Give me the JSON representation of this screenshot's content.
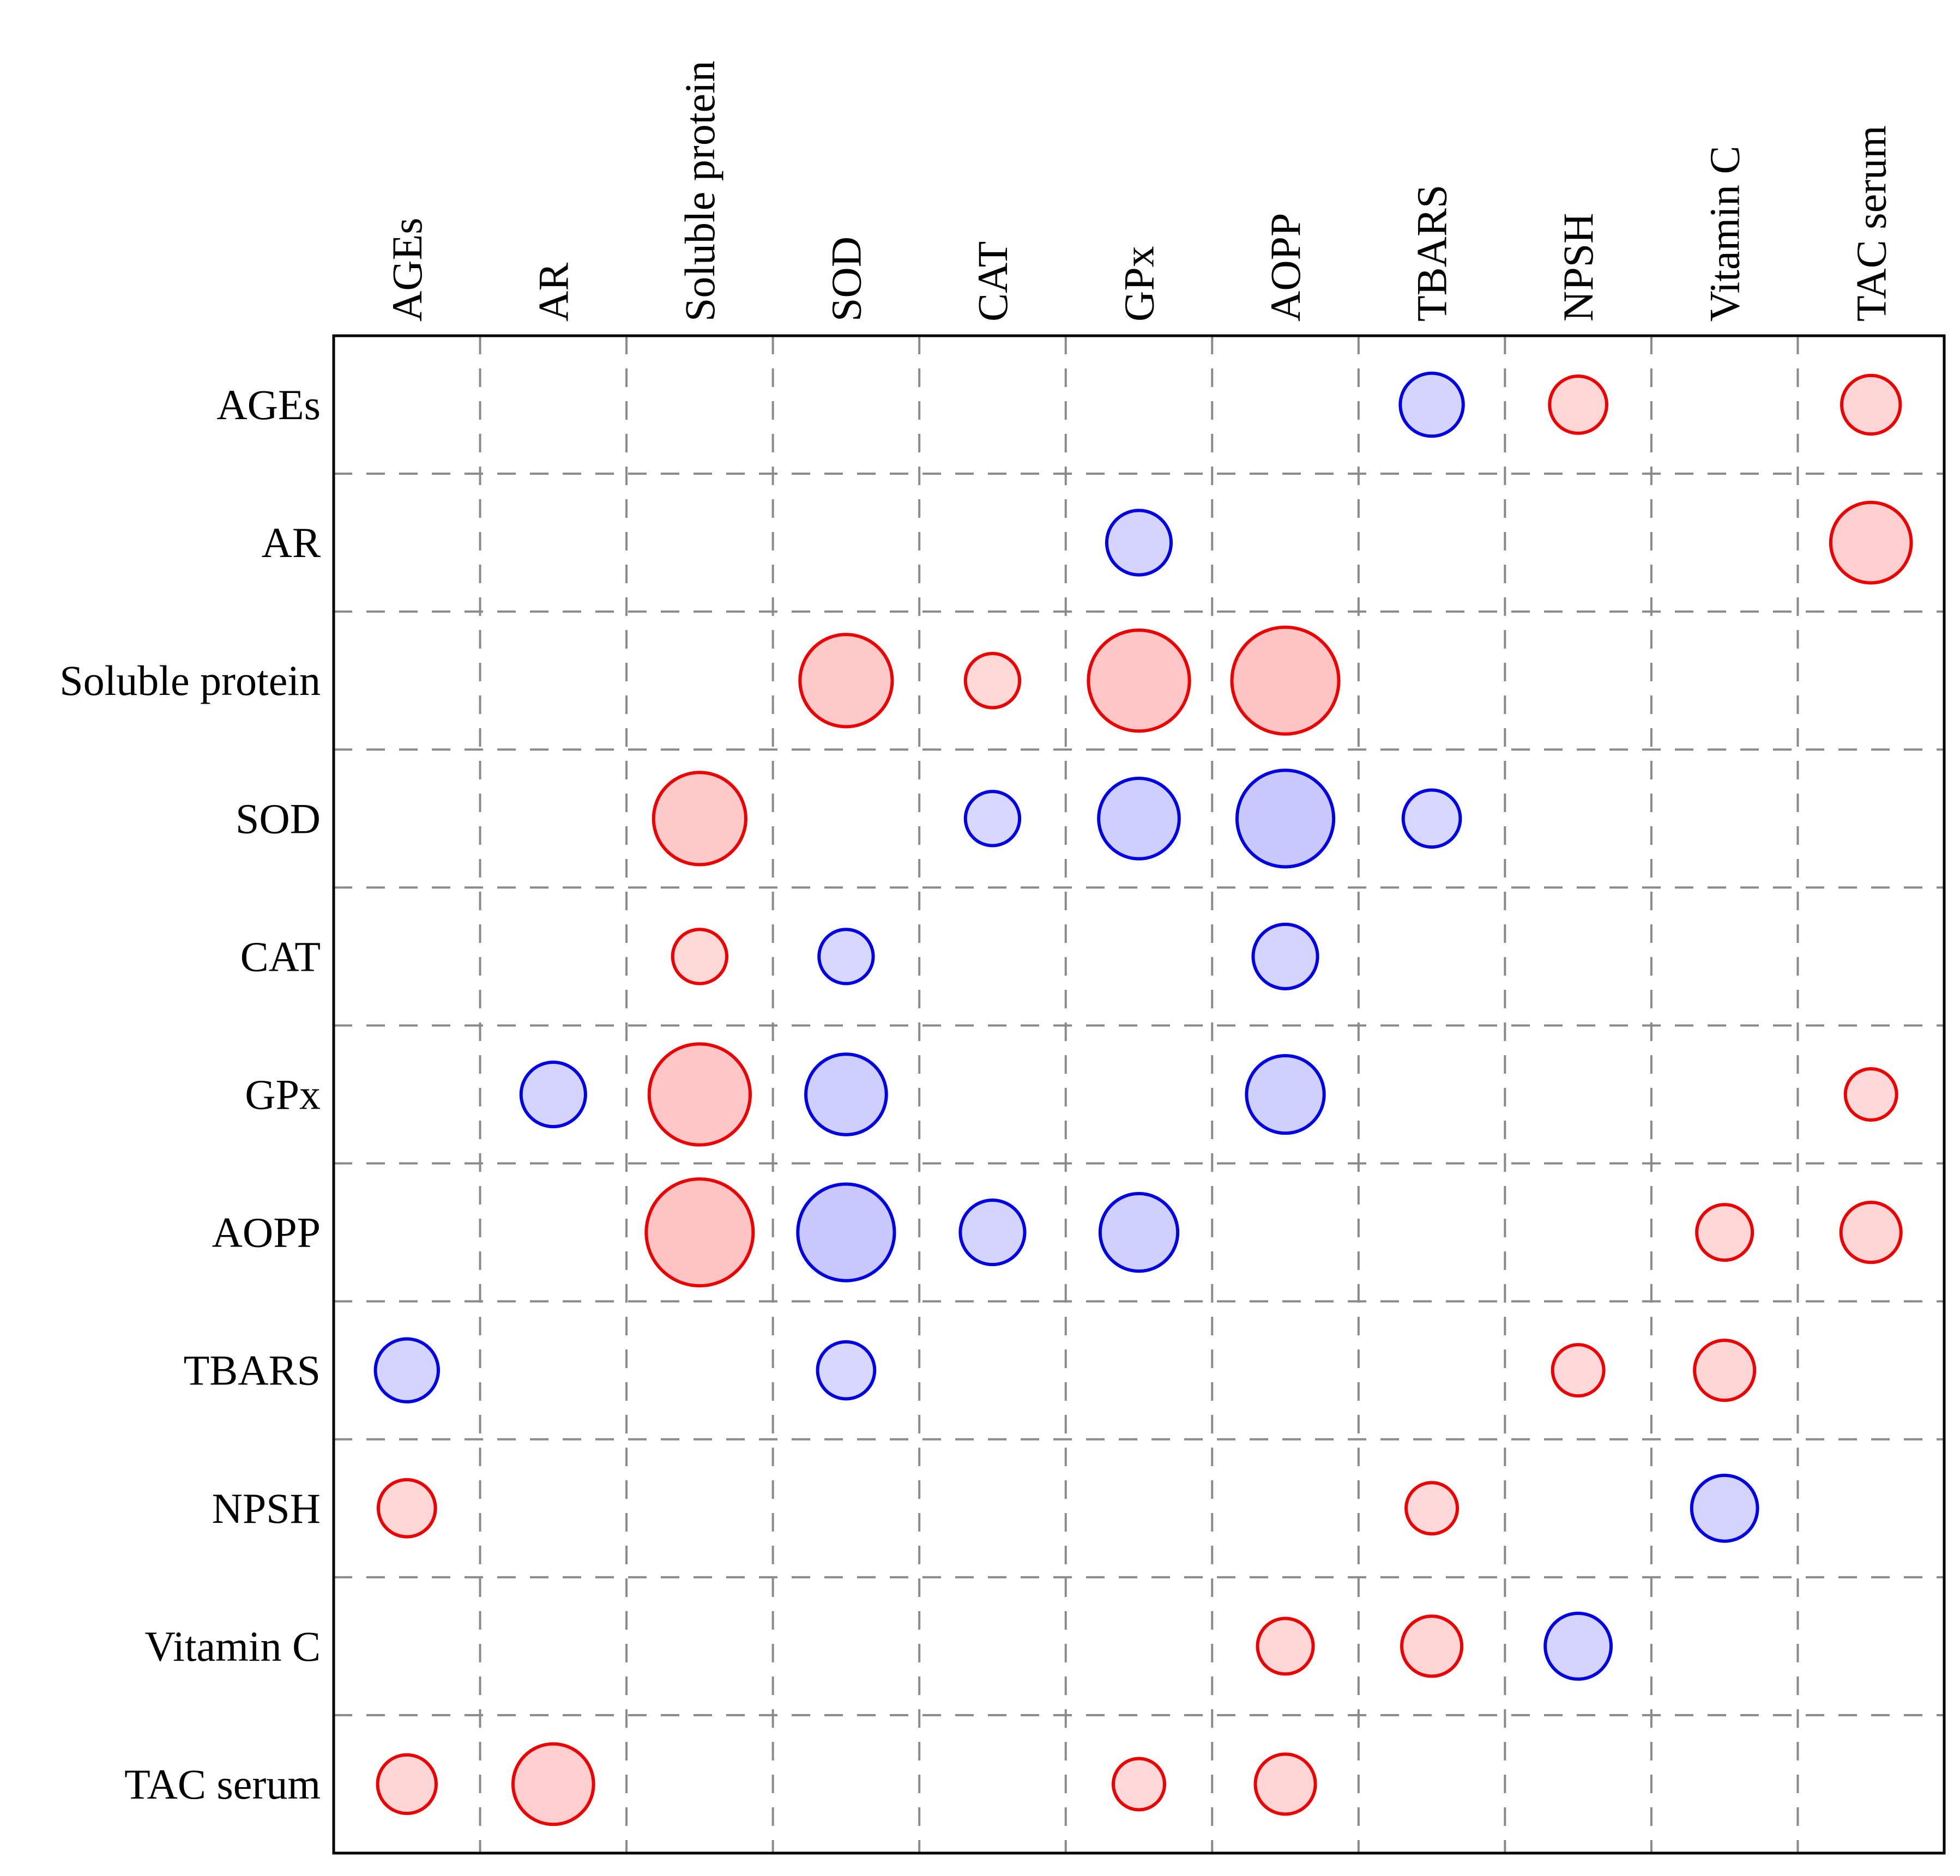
{
  "figure": {
    "background_color": "#ffffff",
    "title": ""
  },
  "chart_data": {
    "type": "correlation-bubble-matrix",
    "title": "",
    "xlabel": "",
    "ylabel": "",
    "variables": [
      "AGEs",
      "AR",
      "Soluble protein",
      "SOD",
      "CAT",
      "GPx",
      "AOPP",
      "TBARS",
      "NPSH",
      "Vitamin C",
      "TAC serum"
    ],
    "column_labels": [
      "AGEs",
      "AR",
      "Soluble protein",
      "SOD",
      "CAT",
      "GPx",
      "AOPP",
      "TBARS",
      "NPSH",
      "Vitamin C",
      "TAC serum"
    ],
    "row_labels": [
      "AGEs",
      "AR",
      "Soluble protein",
      "SOD",
      "CAT",
      "GPx",
      "AOPP",
      "TBARS",
      "NPSH",
      "Vitamin C",
      "TAC serum"
    ],
    "correlations": [
      {
        "a": "AGEs",
        "b": "TBARS",
        "r": -0.43
      },
      {
        "a": "AGEs",
        "b": "NPSH",
        "r": 0.39
      },
      {
        "a": "AGEs",
        "b": "TAC serum",
        "r": 0.4
      },
      {
        "a": "AR",
        "b": "GPx",
        "r": -0.44
      },
      {
        "a": "AR",
        "b": "TAC serum",
        "r": 0.55
      },
      {
        "a": "Soluble protein",
        "b": "SOD",
        "r": 0.63
      },
      {
        "a": "Soluble protein",
        "b": "CAT",
        "r": 0.37
      },
      {
        "a": "Soluble protein",
        "b": "GPx",
        "r": 0.69
      },
      {
        "a": "Soluble protein",
        "b": "AOPP",
        "r": 0.73
      },
      {
        "a": "SOD",
        "b": "CAT",
        "r": -0.37
      },
      {
        "a": "SOD",
        "b": "GPx",
        "r": -0.55
      },
      {
        "a": "SOD",
        "b": "AOPP",
        "r": -0.66
      },
      {
        "a": "SOD",
        "b": "TBARS",
        "r": -0.39
      },
      {
        "a": "CAT",
        "b": "AOPP",
        "r": -0.44
      },
      {
        "a": "GPx",
        "b": "AOPP",
        "r": -0.53
      },
      {
        "a": "GPx",
        "b": "TAC serum",
        "r": 0.35
      },
      {
        "a": "AOPP",
        "b": "Vitamin C",
        "r": 0.38
      },
      {
        "a": "AOPP",
        "b": "TAC serum",
        "r": 0.41
      },
      {
        "a": "TBARS",
        "b": "NPSH",
        "r": 0.35
      },
      {
        "a": "TBARS",
        "b": "Vitamin C",
        "r": 0.41
      },
      {
        "a": "NPSH",
        "b": "Vitamin C",
        "r": -0.45
      }
    ],
    "sign_encoding": {
      "positive": "red circle",
      "negative": "blue circle"
    },
    "size_encoding": "circle diameter proportional to |r| (full cell width = 1.0)",
    "positive_stroke_color": "#ee0000",
    "negative_stroke_color": "#0000e6",
    "positive_fill_base": "255,0,0",
    "negative_fill_base": "0,0,255",
    "grid_line_color": "#8a8a8a",
    "frame_color": "#000000",
    "grid": "dashed",
    "legend_position": "none",
    "diagonal": "empty",
    "matrix_symmetric": true
  }
}
